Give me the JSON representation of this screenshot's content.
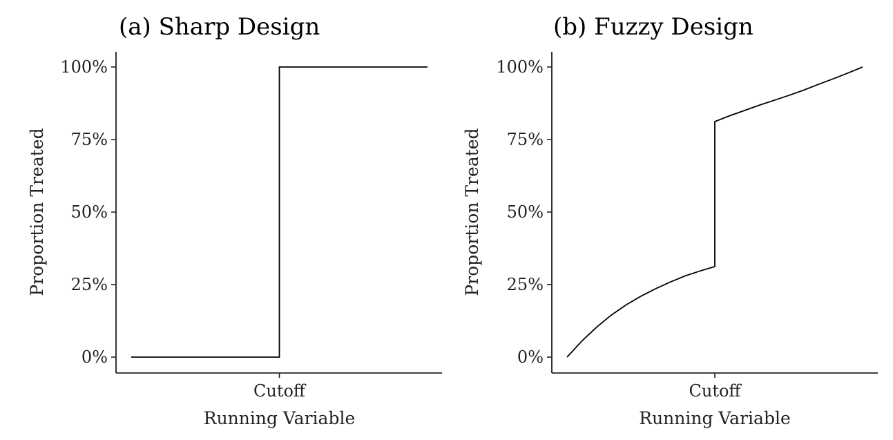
{
  "chart_data": [
    {
      "type": "line",
      "title": "(a) Sharp Design",
      "xlabel": "Running Variable",
      "ylabel": "Proportion Treated",
      "xtick_labels": [
        "Cutoff"
      ],
      "ytick_labels": [
        "0%",
        "25%",
        "50%",
        "75%",
        "100%"
      ],
      "ylim": [
        0,
        100
      ],
      "xlim": [
        -1,
        1
      ],
      "grid": false,
      "series": [
        {
          "x": [
            -1,
            0,
            0,
            1
          ],
          "y": [
            0,
            0,
            100,
            100
          ]
        }
      ]
    },
    {
      "type": "line",
      "title": "(b) Fuzzy Design",
      "xlabel": "Running Variable",
      "ylabel": "Proportion Treated",
      "xtick_labels": [
        "Cutoff"
      ],
      "ytick_labels": [
        "0%",
        "25%",
        "50%",
        "75%",
        "100%"
      ],
      "ylim": [
        0,
        100
      ],
      "xlim": [
        -1,
        1
      ],
      "grid": false,
      "series": [
        {
          "x": [
            -1,
            -0.9,
            -0.8,
            -0.7,
            -0.6,
            -0.5,
            -0.4,
            -0.3,
            -0.2,
            -0.1,
            0,
            0,
            0.1,
            0.2,
            0.3,
            0.4,
            0.5,
            0.6,
            0.7,
            0.8,
            0.9,
            1
          ],
          "y": [
            0,
            5.5,
            10.3,
            14.5,
            18.0,
            21.0,
            23.6,
            25.9,
            28.0,
            29.7,
            31.2,
            81.2,
            83.2,
            85.0,
            86.8,
            88.5,
            90.2,
            92.0,
            94.0,
            95.9,
            97.9,
            100
          ]
        }
      ]
    }
  ]
}
